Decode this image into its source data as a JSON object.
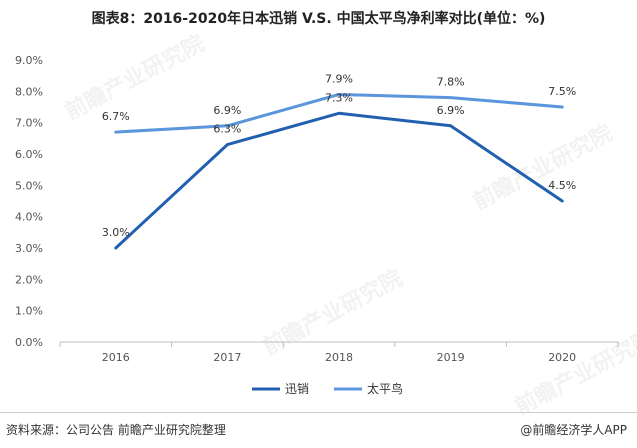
{
  "title": "图表8：2016-2020年日本迅销 V.S. 中国太平鸟净利率对比(单位：%)",
  "source": "资料来源：公司公告 前瞻产业研究院整理",
  "credit": "@前瞻经济学人APP",
  "watermark": "前瞻产业研究院",
  "chart_data": {
    "type": "line",
    "title": "图表8：2016-2020年日本迅销 V.S. 中国太平鸟净利率对比(单位：%)",
    "xlabel": "",
    "ylabel": "",
    "categories": [
      "2016",
      "2017",
      "2018",
      "2019",
      "2020"
    ],
    "ylim": [
      0,
      9
    ],
    "y_ticks": [
      "0.0%",
      "1.0%",
      "2.0%",
      "3.0%",
      "4.0%",
      "5.0%",
      "6.0%",
      "7.0%",
      "8.0%",
      "9.0%"
    ],
    "grid": false,
    "legend_position": "bottom",
    "series": [
      {
        "name": "迅销",
        "values": [
          3.0,
          6.3,
          7.3,
          6.9,
          4.5
        ],
        "labels": [
          "3.0%",
          "6.3%",
          "7.3%",
          "6.9%",
          "4.5%"
        ],
        "color": "#2160b0"
      },
      {
        "name": "太平鸟",
        "values": [
          6.7,
          6.9,
          7.9,
          7.8,
          7.5
        ],
        "labels": [
          "6.7%",
          "6.9%",
          "7.9%",
          "7.8%",
          "7.5%"
        ],
        "color": "#5b95dc"
      }
    ]
  }
}
